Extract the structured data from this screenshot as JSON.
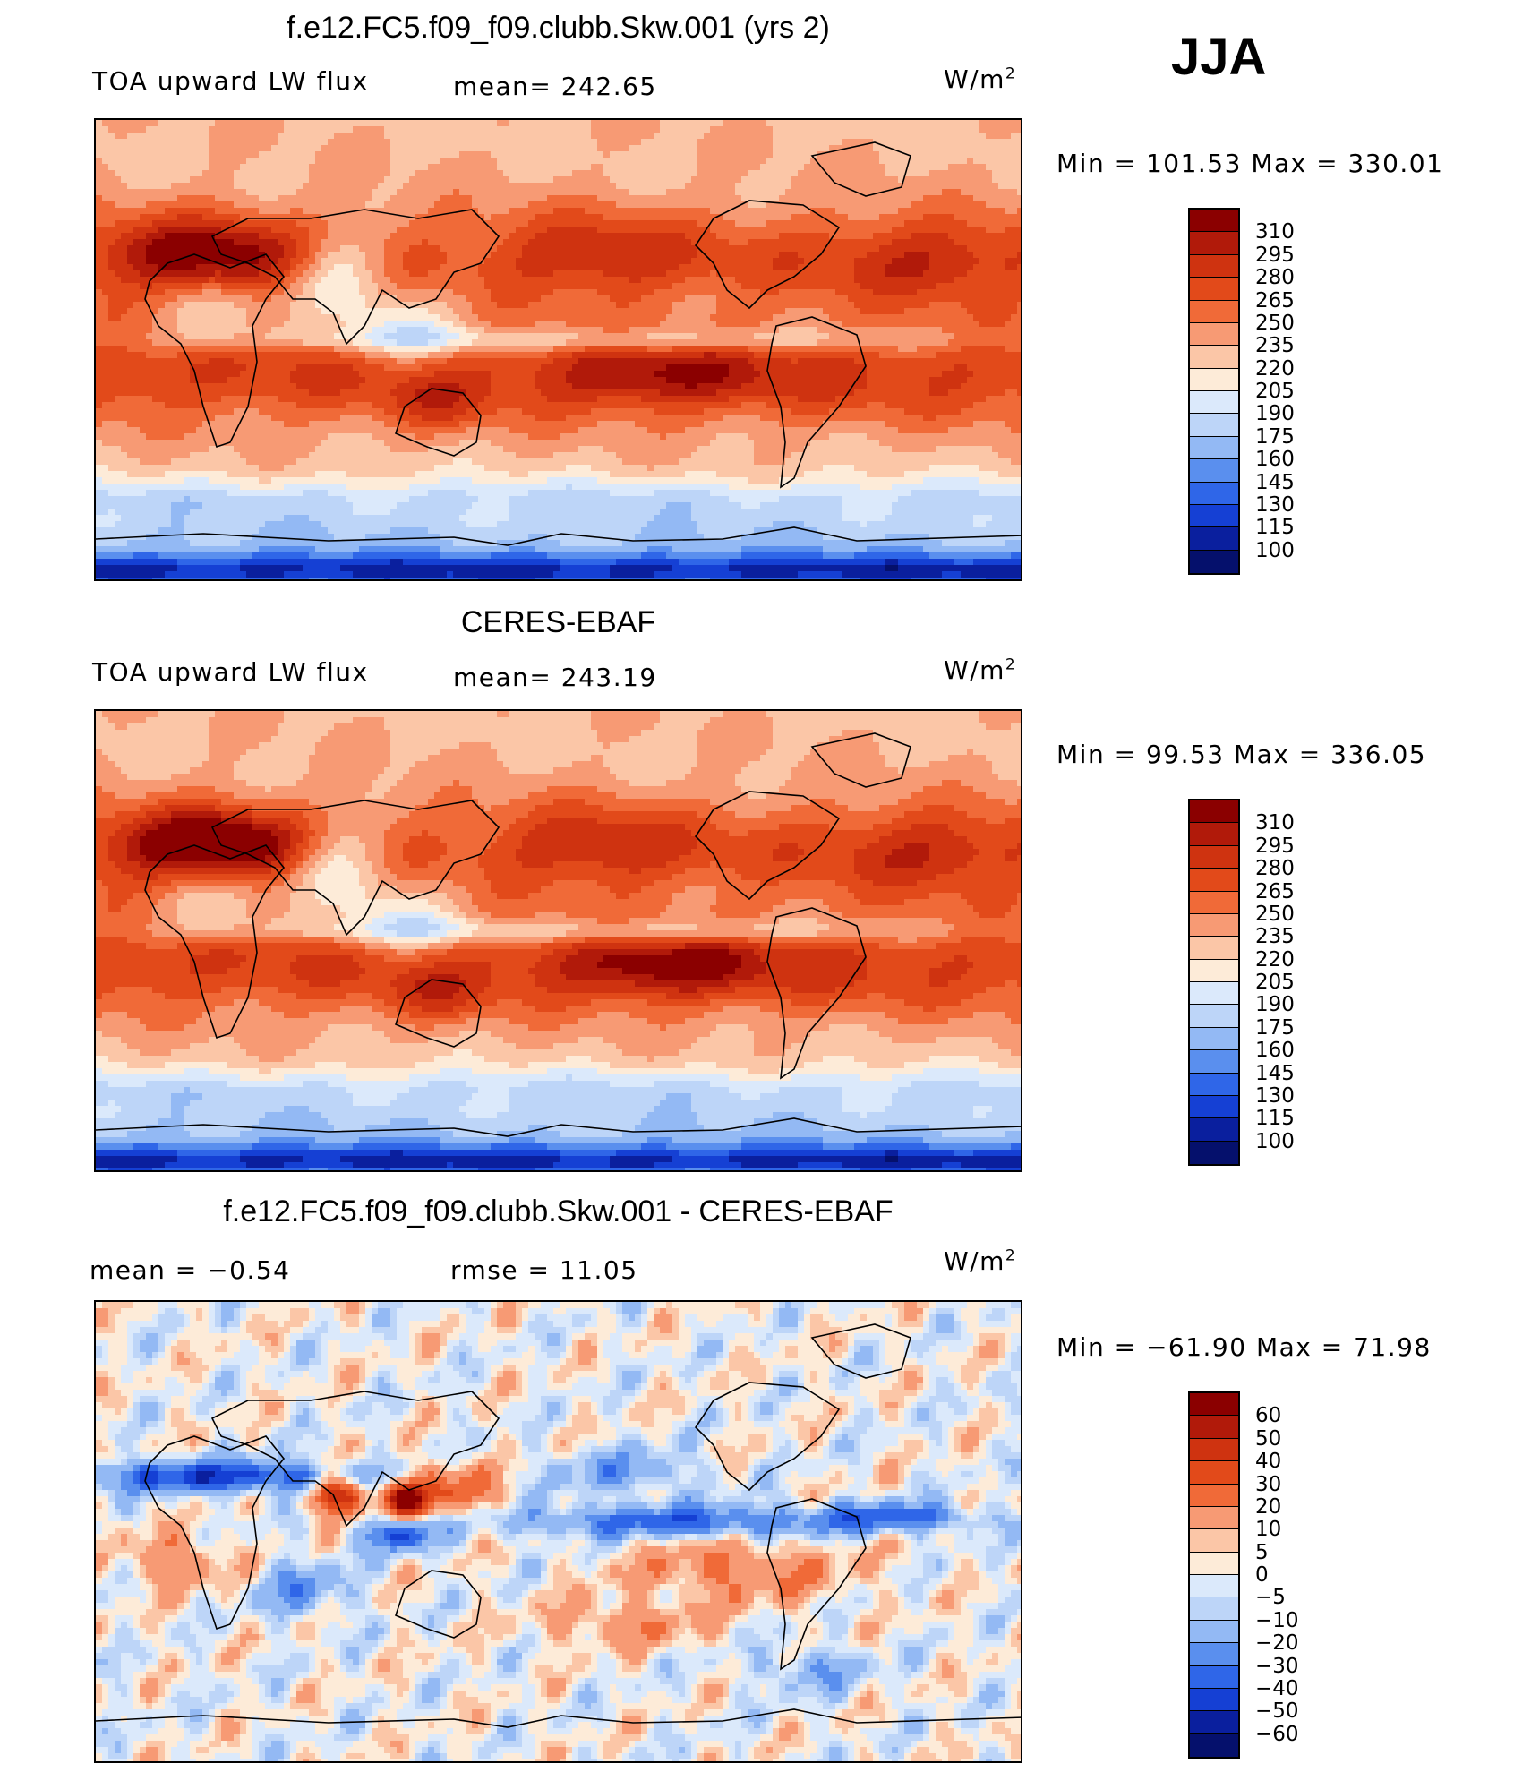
{
  "season": "JJA",
  "panels": [
    {
      "title": "f.e12.FC5.f09_f09.clubb.Skw.001 (yrs 2)",
      "left_label": "TOA upward LW flux",
      "stat_label": "mean= 242.65",
      "units": "W/m",
      "units_sup": "2",
      "minmax": "Min  =  101.53  Max  =  330.01"
    },
    {
      "title": "CERES-EBAF",
      "left_label": "TOA upward LW flux",
      "stat_label": "mean= 243.19",
      "units": "W/m",
      "units_sup": "2",
      "minmax": "Min  =    99.53  Max  =  336.05"
    },
    {
      "title": "f.e12.FC5.f09_f09.clubb.Skw.001 - CERES-EBAF",
      "left_label": "mean  =    −0.54",
      "stat_label": "rmse  =    11.05",
      "units": "W/m",
      "units_sup": "2",
      "minmax": "Min  =  −61.90  Max  =    71.98"
    }
  ],
  "chart_data": [
    {
      "type": "heatmap",
      "title": "f.e12.FC5.f09_f09.clubb.Skw.001 (yrs 2)",
      "subtitle": "TOA upward LW flux",
      "units": "W/m2",
      "mean": 242.65,
      "min": 101.53,
      "max": 330.01,
      "colorbar_levels": [
        "310",
        "295",
        "280",
        "265",
        "250",
        "235",
        "220",
        "205",
        "190",
        "175",
        "160",
        "145",
        "130",
        "115",
        "100"
      ],
      "colorbar_colors": [
        "#8b0000",
        "#b11a0a",
        "#cf3310",
        "#e24a1a",
        "#f06a38",
        "#f79a74",
        "#fbc6a7",
        "#fdebd8",
        "#dbe9fb",
        "#bdd5f8",
        "#93b9f4",
        "#5a8fee",
        "#2f66e8",
        "#1540d4",
        "#0a1f9e",
        "#05106c"
      ]
    },
    {
      "type": "heatmap",
      "title": "CERES-EBAF",
      "subtitle": "TOA upward LW flux",
      "units": "W/m2",
      "mean": 243.19,
      "min": 99.53,
      "max": 336.05,
      "colorbar_levels": [
        "310",
        "295",
        "280",
        "265",
        "250",
        "235",
        "220",
        "205",
        "190",
        "175",
        "160",
        "145",
        "130",
        "115",
        "100"
      ],
      "colorbar_colors": [
        "#8b0000",
        "#b11a0a",
        "#cf3310",
        "#e24a1a",
        "#f06a38",
        "#f79a74",
        "#fbc6a7",
        "#fdebd8",
        "#dbe9fb",
        "#bdd5f8",
        "#93b9f4",
        "#5a8fee",
        "#2f66e8",
        "#1540d4",
        "#0a1f9e",
        "#05106c"
      ]
    },
    {
      "type": "heatmap",
      "title": "f.e12.FC5.f09_f09.clubb.Skw.001 - CERES-EBAF",
      "units": "W/m2",
      "mean": -0.54,
      "rmse": 11.05,
      "min": -61.9,
      "max": 71.98,
      "colorbar_levels": [
        "60",
        "50",
        "40",
        "30",
        "20",
        "10",
        "5",
        "0",
        "−5",
        "−10",
        "−20",
        "−30",
        "−40",
        "−50",
        "−60"
      ],
      "colorbar_colors": [
        "#8b0000",
        "#b11a0a",
        "#cf3310",
        "#e24a1a",
        "#f06a38",
        "#f79a74",
        "#fbc6a7",
        "#fdebd8",
        "#dbe9fb",
        "#bdd5f8",
        "#93b9f4",
        "#5a8fee",
        "#2f66e8",
        "#1540d4",
        "#0a1f9e",
        "#05106c"
      ]
    }
  ]
}
